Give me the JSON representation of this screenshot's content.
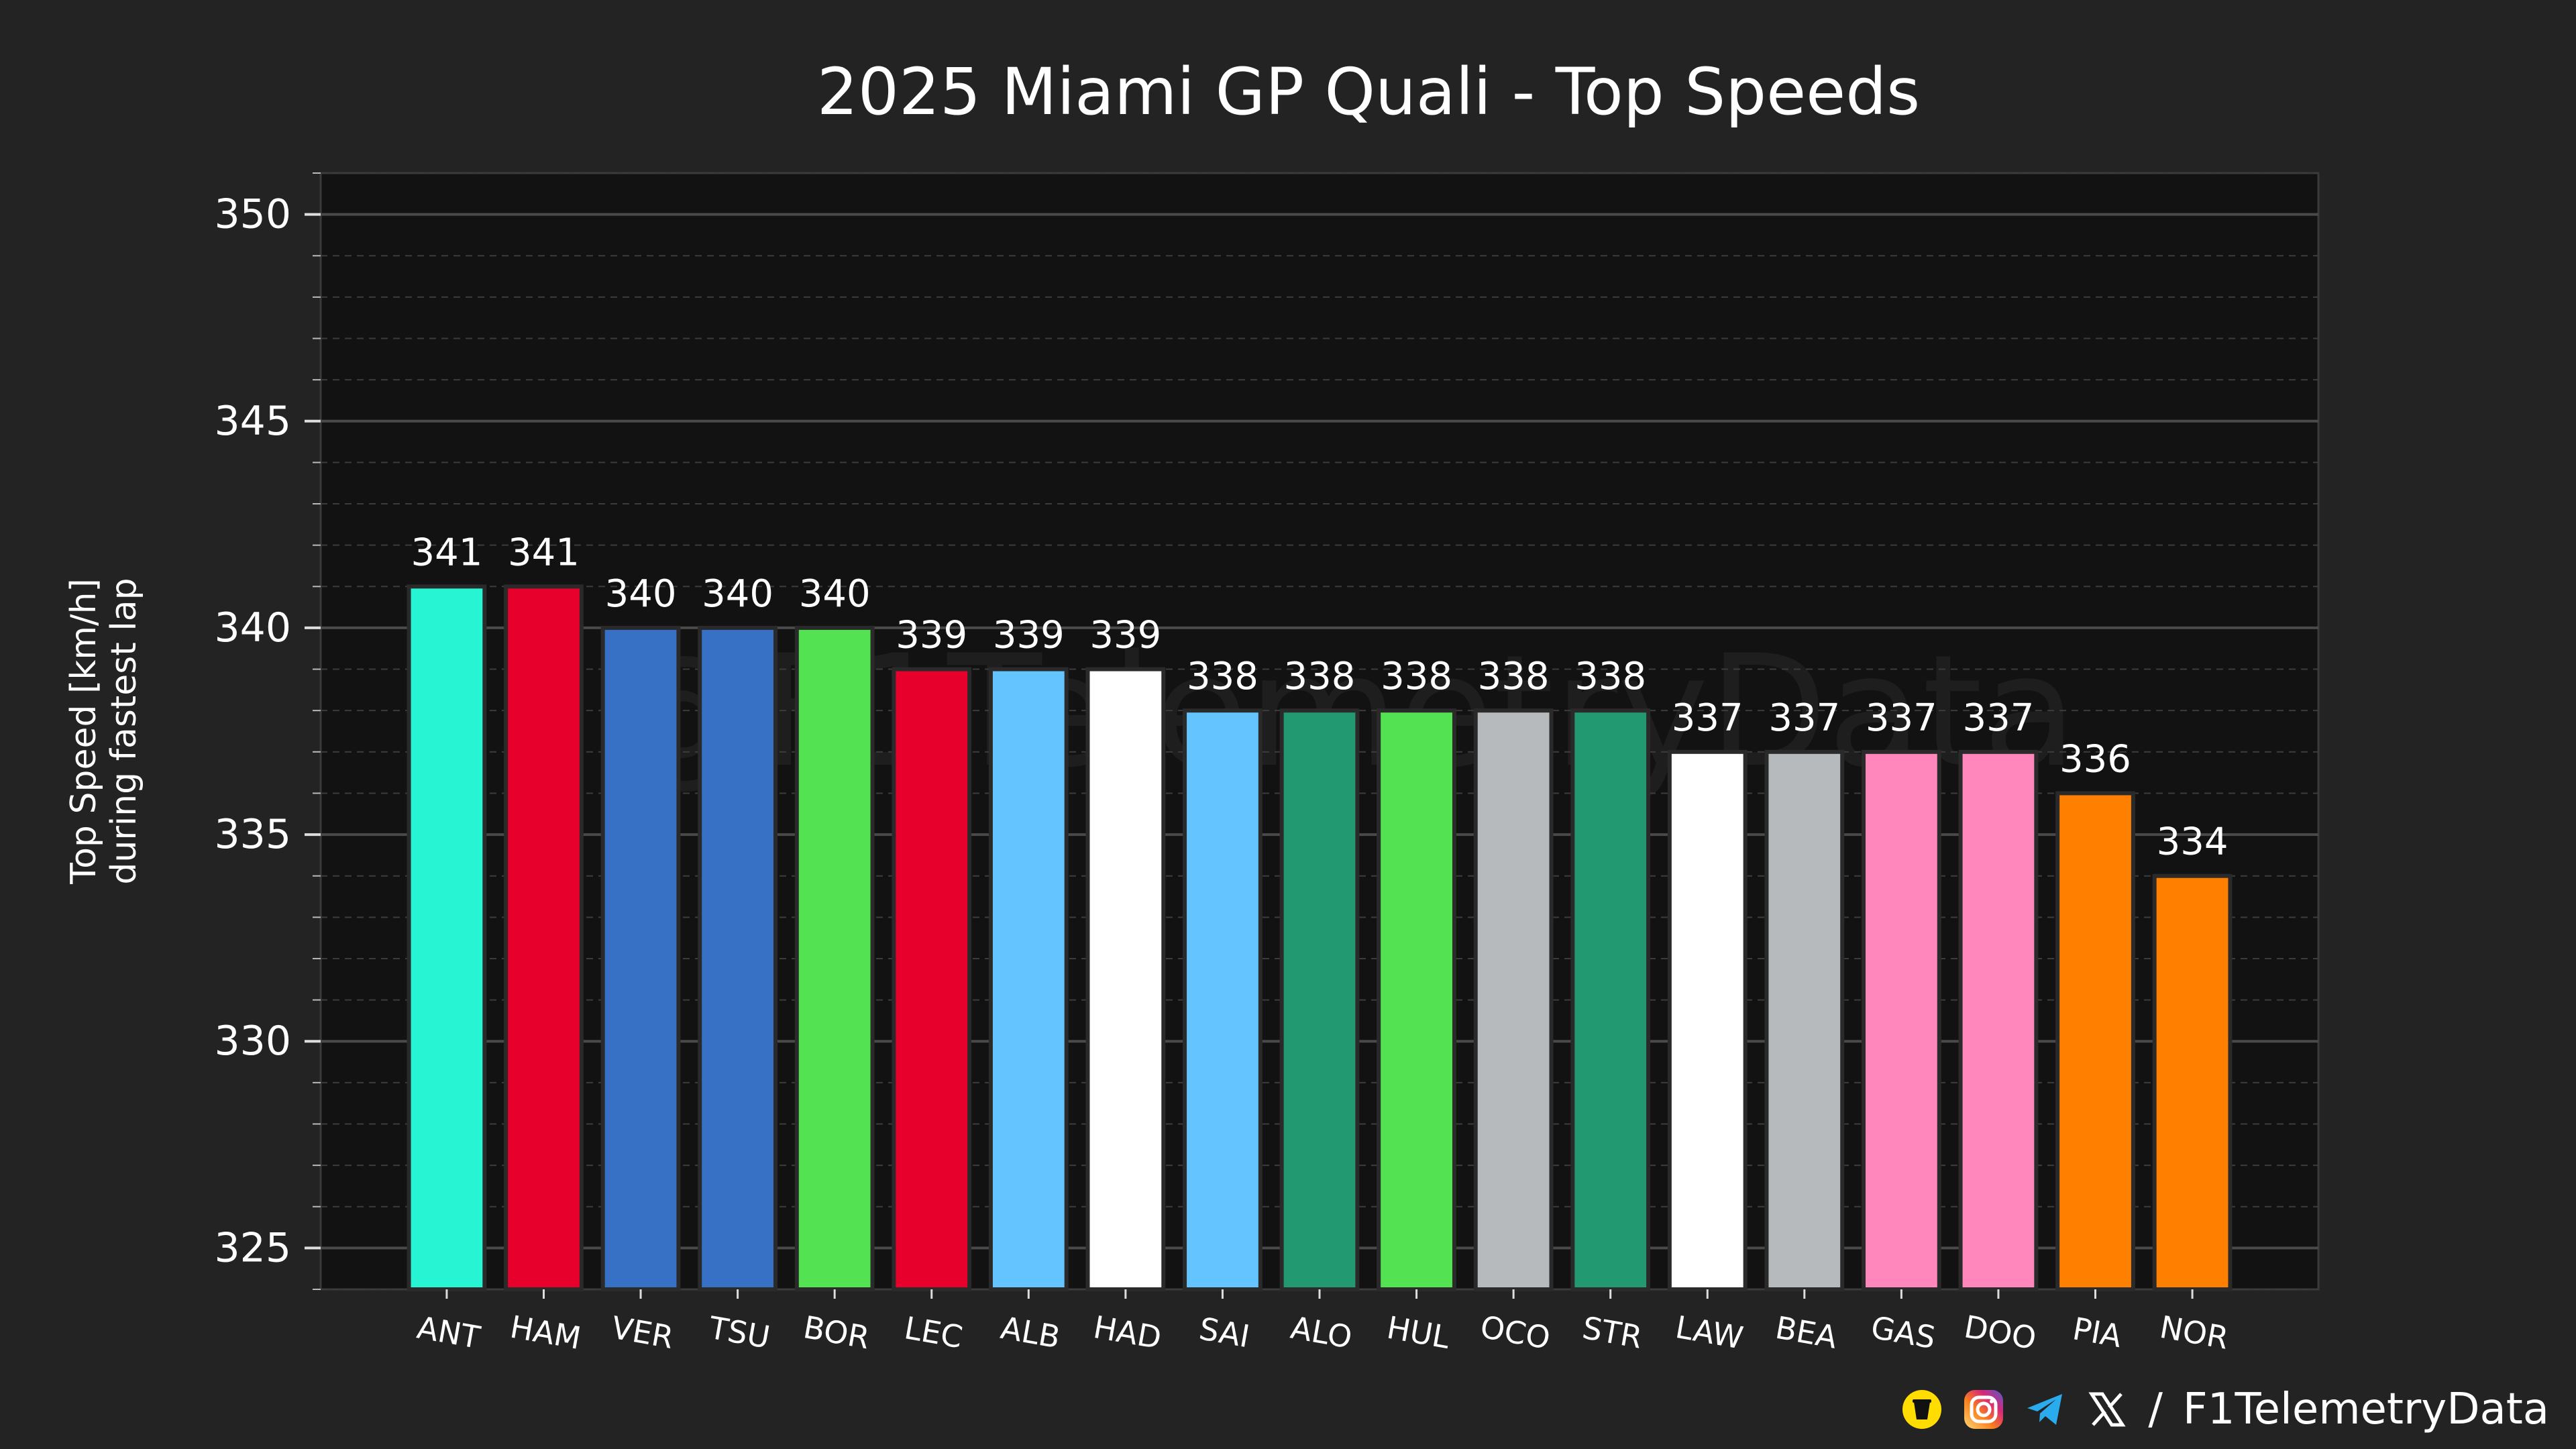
{
  "chart_data": {
    "type": "bar",
    "title": "2025 Miami GP Quali - Top Speeds",
    "ylabel_line1": "Top Speed [km/h]",
    "ylabel_line2": "during fastest lap",
    "xlabel": "",
    "ylim": [
      324,
      351
    ],
    "yticks": [
      325,
      330,
      335,
      340,
      345,
      350
    ],
    "grid": true,
    "categories": [
      "ANT",
      "HAM",
      "VER",
      "TSU",
      "BOR",
      "LEC",
      "ALB",
      "HAD",
      "SAI",
      "ALO",
      "HUL",
      "OCO",
      "STR",
      "LAW",
      "BEA",
      "GAS",
      "DOO",
      "PIA",
      "NOR"
    ],
    "values": [
      341,
      341,
      340,
      340,
      340,
      339,
      339,
      339,
      338,
      338,
      338,
      338,
      338,
      337,
      337,
      337,
      337,
      336,
      334
    ],
    "colors": [
      "#27F4D2",
      "#E8002D",
      "#3671C6",
      "#3671C6",
      "#52E252",
      "#E8002D",
      "#64C4FF",
      "#FFFFFF",
      "#64C4FF",
      "#229971",
      "#52E252",
      "#B6BABD",
      "#229971",
      "#FFFFFF",
      "#B6BABD",
      "#FF87BC",
      "#FF87BC",
      "#FF8000",
      "#FF8000"
    ]
  },
  "watermark": "@F1TelemetryData",
  "footer": {
    "separator": "/",
    "handle": "F1TelemetryData",
    "icons": [
      "buymeacoffee-icon",
      "instagram-icon",
      "telegram-icon",
      "x-icon"
    ]
  }
}
